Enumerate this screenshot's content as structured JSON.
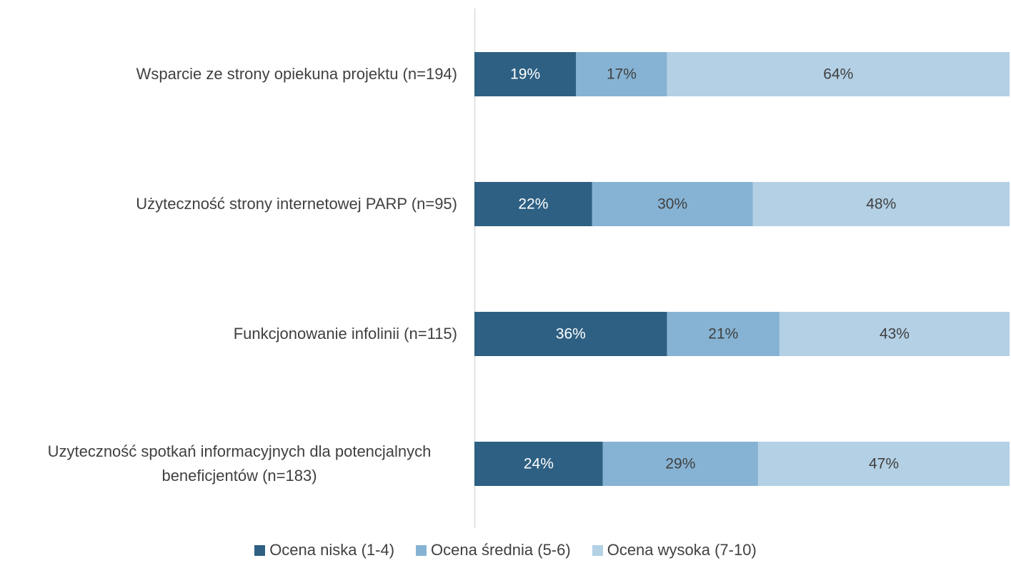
{
  "chart_data": {
    "type": "stacked-bar-horizontal",
    "categories": [
      "Wsparcie ze strony opiekuna projektu (n=194)",
      "Użyteczność strony internetowej PARP (n=95)",
      "Funkcjonowanie infolinii (n=115)",
      "Uzyteczność spotkań informacyjnych dla potencjalnych beneficjentów (n=183)"
    ],
    "series": [
      {
        "name": "Ocena niska (1-4)",
        "color": "#2e6083",
        "values": [
          19,
          22,
          36,
          24
        ],
        "value_labels": [
          "19%",
          "22%",
          "36%",
          "24%"
        ]
      },
      {
        "name": "Ocena średnia (5-6)",
        "color": "#86b3d4",
        "values": [
          17,
          30,
          21,
          29
        ],
        "value_labels": [
          "17%",
          "30%",
          "21%",
          "29%"
        ]
      },
      {
        "name": "Ocena wysoka (7-10)",
        "color": "#b3d0e5",
        "values": [
          64,
          48,
          43,
          47
        ],
        "value_labels": [
          "64%",
          "48%",
          "43%",
          "47%"
        ]
      }
    ],
    "xlim": [
      0,
      100
    ],
    "legend": "bottom"
  }
}
